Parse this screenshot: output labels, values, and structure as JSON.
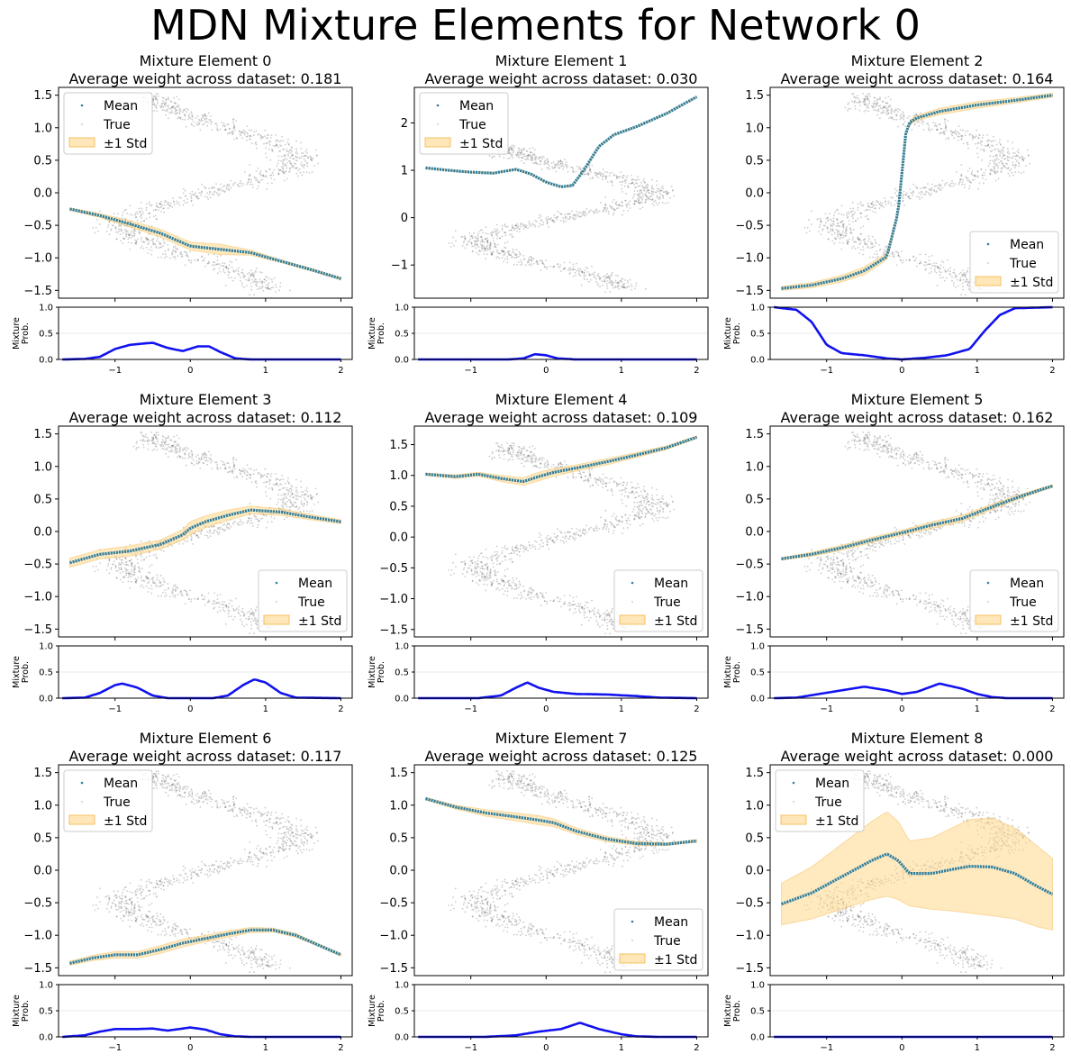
{
  "figure": {
    "suptitle": "MDN Mixture Elements for Network 0",
    "colors": {
      "mean": "#2f7fa0",
      "true": "#555555",
      "std_fill": "#ffd78a",
      "prob_line": "#1212f0",
      "grid": "#e0e0e0"
    }
  },
  "chart_data": [
    {
      "type": "scatter",
      "title": "Mixture Element 0",
      "subtitle": "Average weight across dataset: 0.181",
      "legend": [
        "Mean",
        "True",
        "±1 Std"
      ],
      "legend_position": "upper-left",
      "ylim": [
        -1.62,
        1.62
      ],
      "yticks": [
        -1.5,
        -1.0,
        -0.5,
        0.0,
        0.5,
        1.0,
        1.5
      ],
      "ytick_labels": [
        "−1.5",
        "−1.0",
        "−0.5",
        "0.0",
        "0.5",
        "1.0",
        "1.5"
      ],
      "mean_curve": {
        "x": [
          -1.6,
          -1.2,
          -0.8,
          -0.4,
          0.0,
          0.4,
          0.8,
          1.2,
          1.6,
          2.0
        ],
        "y": [
          -0.25,
          -0.35,
          -0.48,
          -0.62,
          -0.82,
          -0.87,
          -0.92,
          -1.05,
          -1.18,
          -1.32
        ]
      },
      "std": [
        0.02,
        0.03,
        0.05,
        0.06,
        0.06,
        0.08,
        0.04,
        0.02,
        0.02,
        0.02
      ],
      "prob_label": "Mixture\nProb.",
      "prob_curve": {
        "x": [
          -1.7,
          -1.4,
          -1.2,
          -1.0,
          -0.8,
          -0.5,
          -0.3,
          -0.1,
          0.1,
          0.25,
          0.4,
          0.6,
          0.8,
          1.2,
          2.0
        ],
        "y": [
          0.0,
          0.01,
          0.05,
          0.2,
          0.28,
          0.32,
          0.22,
          0.16,
          0.25,
          0.25,
          0.14,
          0.02,
          0.0,
          0.0,
          0.0
        ]
      },
      "prob_ylim": [
        0,
        1
      ],
      "prob_yticks": [
        "0.0",
        "0.5",
        "1.0"
      ],
      "prob_xticks": [
        "−1",
        "0",
        "1",
        "2"
      ]
    },
    {
      "type": "scatter",
      "title": "Mixture Element 1",
      "subtitle": "Average weight across dataset: 0.030",
      "legend": [
        "Mean",
        "True",
        "±1 Std"
      ],
      "legend_position": "upper-left",
      "ylim": [
        -1.7,
        2.75
      ],
      "yticks": [
        -1,
        0,
        1,
        2
      ],
      "ytick_labels": [
        "−1",
        "0",
        "1",
        "2"
      ],
      "mean_curve": {
        "x": [
          -1.6,
          -1.3,
          -1.0,
          -0.7,
          -0.4,
          -0.2,
          0.0,
          0.2,
          0.35,
          0.5,
          0.7,
          0.9,
          1.2,
          1.6,
          2.0
        ],
        "y": [
          1.05,
          1.0,
          0.96,
          0.94,
          1.02,
          0.92,
          0.75,
          0.65,
          0.68,
          1.0,
          1.5,
          1.75,
          1.92,
          2.2,
          2.55
        ]
      },
      "std": [
        0.01,
        0.01,
        0.01,
        0.01,
        0.01,
        0.01,
        0.01,
        0.01,
        0.01,
        0.01,
        0.01,
        0.01,
        0.01,
        0.01,
        0.01
      ],
      "prob_label": "Mixture\nProb.",
      "prob_curve": {
        "x": [
          -1.7,
          -0.5,
          -0.3,
          -0.15,
          0.0,
          0.15,
          0.4,
          2.0
        ],
        "y": [
          0.0,
          0.0,
          0.02,
          0.1,
          0.08,
          0.02,
          0.0,
          0.0
        ]
      },
      "prob_ylim": [
        0,
        1
      ],
      "prob_yticks": [
        "0.0",
        "0.5",
        "1.0"
      ],
      "prob_xticks": [
        "−1",
        "0",
        "1",
        "2"
      ]
    },
    {
      "type": "scatter",
      "title": "Mixture Element 2",
      "subtitle": "Average weight across dataset: 0.164",
      "legend": [
        "Mean",
        "True",
        "±1 Std"
      ],
      "legend_position": "lower-right",
      "ylim": [
        -1.62,
        1.62
      ],
      "yticks": [
        -1.5,
        -1.0,
        -0.5,
        0.0,
        0.5,
        1.0,
        1.5
      ],
      "ytick_labels": [
        "−1.5",
        "−1.0",
        "−0.5",
        "0.0",
        "0.5",
        "1.0",
        "1.5"
      ],
      "mean_curve": {
        "x": [
          -1.6,
          -1.2,
          -0.8,
          -0.5,
          -0.2,
          -0.05,
          0.0,
          0.05,
          0.1,
          0.2,
          0.5,
          1.0,
          1.5,
          2.0
        ],
        "y": [
          -1.47,
          -1.42,
          -1.32,
          -1.2,
          -0.98,
          -0.3,
          0.3,
          0.9,
          1.08,
          1.15,
          1.25,
          1.35,
          1.42,
          1.5
        ]
      },
      "std": [
        0.03,
        0.04,
        0.05,
        0.06,
        0.05,
        0.03,
        0.03,
        0.03,
        0.03,
        0.04,
        0.05,
        0.05,
        0.04,
        0.03
      ],
      "prob_label": "Mixture\nProb.",
      "prob_curve": {
        "x": [
          -1.7,
          -1.4,
          -1.2,
          -1.0,
          -0.8,
          -0.5,
          -0.2,
          0.0,
          0.3,
          0.6,
          0.9,
          1.1,
          1.3,
          1.5,
          2.0
        ],
        "y": [
          1.0,
          0.95,
          0.72,
          0.28,
          0.12,
          0.08,
          0.02,
          0.0,
          0.03,
          0.08,
          0.2,
          0.55,
          0.85,
          0.98,
          1.0
        ]
      },
      "prob_ylim": [
        0,
        1
      ],
      "prob_yticks": [
        "0.0",
        "0.5",
        "1.0"
      ],
      "prob_xticks": [
        "−1",
        "0",
        "1",
        "2"
      ]
    },
    {
      "type": "scatter",
      "title": "Mixture Element 3",
      "subtitle": "Average weight across dataset: 0.112",
      "legend": [
        "Mean",
        "True",
        "±1 Std"
      ],
      "legend_position": "lower-right",
      "ylim": [
        -1.62,
        1.62
      ],
      "yticks": [
        -1.5,
        -1.0,
        -0.5,
        0.0,
        0.5,
        1.0,
        1.5
      ],
      "ytick_labels": [
        "−1.5",
        "−1.0",
        "−0.5",
        "0.0",
        "0.5",
        "1.0",
        "1.5"
      ],
      "mean_curve": {
        "x": [
          -1.6,
          -1.2,
          -0.8,
          -0.4,
          -0.1,
          0.0,
          0.2,
          0.5,
          0.8,
          1.2,
          1.6,
          2.0
        ],
        "y": [
          -0.48,
          -0.35,
          -0.3,
          -0.2,
          -0.05,
          0.05,
          0.15,
          0.25,
          0.33,
          0.3,
          0.22,
          0.15
        ]
      },
      "std": [
        0.07,
        0.07,
        0.08,
        0.07,
        0.08,
        0.1,
        0.09,
        0.08,
        0.06,
        0.05,
        0.04,
        0.03
      ],
      "prob_label": "Mixture\nProb.",
      "prob_curve": {
        "x": [
          -1.7,
          -1.4,
          -1.2,
          -1.0,
          -0.9,
          -0.7,
          -0.5,
          -0.3,
          0.0,
          0.3,
          0.5,
          0.7,
          0.85,
          1.0,
          1.2,
          1.4,
          2.0
        ],
        "y": [
          0.0,
          0.01,
          0.1,
          0.25,
          0.28,
          0.2,
          0.05,
          0.0,
          0.0,
          0.0,
          0.05,
          0.25,
          0.36,
          0.3,
          0.1,
          0.01,
          0.0
        ]
      },
      "prob_ylim": [
        0,
        1
      ],
      "prob_yticks": [
        "0.0",
        "0.5",
        "1.0"
      ],
      "prob_xticks": [
        "−1",
        "0",
        "1",
        "2"
      ]
    },
    {
      "type": "scatter",
      "title": "Mixture Element 4",
      "subtitle": "Average weight across dataset: 0.109",
      "legend": [
        "Mean",
        "True",
        "±1 Std"
      ],
      "legend_position": "lower-right",
      "ylim": [
        -1.62,
        1.8
      ],
      "yticks": [
        -1.5,
        -1.0,
        -0.5,
        0.0,
        0.5,
        1.0,
        1.5
      ],
      "ytick_labels": [
        "−1.5",
        "−1.0",
        "−0.5",
        "0.0",
        "0.5",
        "1.0",
        "1.5"
      ],
      "mean_curve": {
        "x": [
          -1.6,
          -1.2,
          -0.9,
          -0.6,
          -0.3,
          -0.1,
          0.1,
          0.4,
          0.8,
          1.2,
          1.6,
          2.0
        ],
        "y": [
          1.02,
          0.98,
          1.02,
          0.95,
          0.9,
          0.98,
          1.05,
          1.12,
          1.22,
          1.33,
          1.45,
          1.62
        ]
      },
      "std": [
        0.02,
        0.03,
        0.03,
        0.05,
        0.06,
        0.07,
        0.06,
        0.05,
        0.05,
        0.04,
        0.03,
        0.02
      ],
      "prob_label": "Mixture\nProb.",
      "prob_curve": {
        "x": [
          -1.7,
          -0.9,
          -0.6,
          -0.4,
          -0.25,
          -0.1,
          0.1,
          0.4,
          0.8,
          1.2,
          1.5,
          2.0
        ],
        "y": [
          0.0,
          0.0,
          0.05,
          0.2,
          0.3,
          0.2,
          0.12,
          0.08,
          0.07,
          0.04,
          0.01,
          0.0
        ]
      },
      "prob_ylim": [
        0,
        1
      ],
      "prob_yticks": [
        "0.0",
        "0.5",
        "1.0"
      ],
      "prob_xticks": [
        "−1",
        "0",
        "1",
        "2"
      ]
    },
    {
      "type": "scatter",
      "title": "Mixture Element 5",
      "subtitle": "Average weight across dataset: 0.162",
      "legend": [
        "Mean",
        "True",
        "±1 Std"
      ],
      "legend_position": "lower-right",
      "ylim": [
        -1.62,
        1.62
      ],
      "yticks": [
        -1.5,
        -1.0,
        -0.5,
        0.0,
        0.5,
        1.0,
        1.5
      ],
      "ytick_labels": [
        "−1.5",
        "−1.0",
        "−0.5",
        "0.0",
        "0.5",
        "1.0",
        "1.5"
      ],
      "mean_curve": {
        "x": [
          -1.6,
          -1.2,
          -0.8,
          -0.4,
          0.0,
          0.4,
          0.8,
          1.2,
          1.6,
          2.0
        ],
        "y": [
          -0.42,
          -0.35,
          -0.25,
          -0.13,
          -0.02,
          0.1,
          0.2,
          0.38,
          0.55,
          0.7
        ]
      },
      "std": [
        0.02,
        0.03,
        0.04,
        0.04,
        0.04,
        0.05,
        0.05,
        0.04,
        0.03,
        0.02
      ],
      "prob_label": "Mixture\nProb.",
      "prob_curve": {
        "x": [
          -1.7,
          -1.4,
          -1.1,
          -0.8,
          -0.5,
          -0.2,
          0.0,
          0.2,
          0.5,
          0.8,
          1.0,
          1.2,
          1.4,
          2.0
        ],
        "y": [
          0.0,
          0.01,
          0.08,
          0.15,
          0.22,
          0.15,
          0.08,
          0.12,
          0.28,
          0.18,
          0.08,
          0.02,
          0.0,
          0.0
        ]
      },
      "prob_ylim": [
        0,
        1
      ],
      "prob_yticks": [
        "0.0",
        "0.5",
        "1.0"
      ],
      "prob_xticks": [
        "−1",
        "0",
        "1",
        "2"
      ]
    },
    {
      "type": "scatter",
      "title": "Mixture Element 6",
      "subtitle": "Average weight across dataset: 0.117",
      "legend": [
        "Mean",
        "True",
        "±1 Std"
      ],
      "legend_position": "upper-left",
      "ylim": [
        -1.62,
        1.62
      ],
      "yticks": [
        -1.5,
        -1.0,
        -0.5,
        0.0,
        0.5,
        1.0,
        1.5
      ],
      "ytick_labels": [
        "−1.5",
        "−1.0",
        "−0.5",
        "0.0",
        "0.5",
        "1.0",
        "1.5"
      ],
      "mean_curve": {
        "x": [
          -1.6,
          -1.3,
          -1.0,
          -0.7,
          -0.4,
          -0.1,
          0.2,
          0.5,
          0.8,
          1.1,
          1.4,
          1.7,
          2.0
        ],
        "y": [
          -1.43,
          -1.35,
          -1.3,
          -1.3,
          -1.22,
          -1.12,
          -1.05,
          -0.98,
          -0.92,
          -0.92,
          -1.0,
          -1.15,
          -1.3
        ]
      },
      "std": [
        0.03,
        0.04,
        0.05,
        0.05,
        0.06,
        0.06,
        0.05,
        0.05,
        0.04,
        0.03,
        0.03,
        0.02,
        0.02
      ],
      "prob_label": "Mixture\nProb.",
      "prob_curve": {
        "x": [
          -1.7,
          -1.4,
          -1.2,
          -1.0,
          -0.7,
          -0.5,
          -0.3,
          0.0,
          0.2,
          0.4,
          0.6,
          0.8,
          2.0
        ],
        "y": [
          0.0,
          0.03,
          0.1,
          0.15,
          0.15,
          0.16,
          0.12,
          0.18,
          0.14,
          0.05,
          0.01,
          0.0,
          0.0
        ]
      },
      "prob_ylim": [
        0,
        1
      ],
      "prob_yticks": [
        "0.0",
        "0.5",
        "1.0"
      ],
      "prob_xticks": [
        "−1",
        "0",
        "1",
        "2"
      ]
    },
    {
      "type": "scatter",
      "title": "Mixture Element 7",
      "subtitle": "Average weight across dataset: 0.125",
      "legend": [
        "Mean",
        "True",
        "±1 Std"
      ],
      "legend_position": "lower-right",
      "ylim": [
        -1.62,
        1.62
      ],
      "yticks": [
        -1.5,
        -1.0,
        -0.5,
        0.0,
        0.5,
        1.0,
        1.5
      ],
      "ytick_labels": [
        "−1.5",
        "−1.0",
        "−0.5",
        "0.0",
        "0.5",
        "1.0",
        "1.5"
      ],
      "mean_curve": {
        "x": [
          -1.6,
          -1.2,
          -0.8,
          -0.4,
          -0.1,
          0.1,
          0.4,
          0.8,
          1.2,
          1.6,
          2.0
        ],
        "y": [
          1.1,
          0.97,
          0.88,
          0.82,
          0.77,
          0.73,
          0.6,
          0.48,
          0.41,
          0.4,
          0.45
        ]
      },
      "std": [
        0.02,
        0.03,
        0.05,
        0.06,
        0.07,
        0.06,
        0.05,
        0.04,
        0.03,
        0.02,
        0.02
      ],
      "prob_label": "Mixture\nProb.",
      "prob_curve": {
        "x": [
          -1.7,
          -0.8,
          -0.4,
          -0.1,
          0.2,
          0.45,
          0.7,
          1.0,
          1.2,
          1.5,
          2.0
        ],
        "y": [
          0.0,
          0.0,
          0.03,
          0.1,
          0.15,
          0.27,
          0.15,
          0.05,
          0.01,
          0.0,
          0.0
        ]
      },
      "prob_ylim": [
        0,
        1
      ],
      "prob_yticks": [
        "0.0",
        "0.5",
        "1.0"
      ],
      "prob_xticks": [
        "−1",
        "0",
        "1",
        "2"
      ]
    },
    {
      "type": "scatter",
      "title": "Mixture Element 8",
      "subtitle": "Average weight across dataset: 0.000",
      "legend": [
        "Mean",
        "True",
        "±1 Std"
      ],
      "legend_position": "upper-left",
      "ylim": [
        -1.62,
        1.62
      ],
      "yticks": [
        -1.5,
        -1.0,
        -0.5,
        0.0,
        0.5,
        1.0,
        1.5
      ],
      "ytick_labels": [
        "−1.5",
        "−1.0",
        "−0.5",
        "0.0",
        "0.5",
        "1.0",
        "1.5"
      ],
      "mean_curve": {
        "x": [
          -1.6,
          -1.2,
          -0.8,
          -0.4,
          -0.2,
          -0.05,
          0.1,
          0.4,
          0.7,
          0.9,
          1.2,
          1.5,
          1.8,
          2.0
        ],
        "y": [
          -0.52,
          -0.35,
          -0.1,
          0.15,
          0.25,
          0.15,
          -0.05,
          -0.05,
          0.02,
          0.06,
          0.05,
          -0.05,
          -0.25,
          -0.37
        ]
      },
      "std": [
        0.32,
        0.4,
        0.5,
        0.6,
        0.65,
        0.6,
        0.5,
        0.55,
        0.65,
        0.72,
        0.75,
        0.7,
        0.62,
        0.55
      ],
      "prob_label": "Mixture\nProb.",
      "prob_curve": {
        "x": [
          -1.7,
          2.0
        ],
        "y": [
          0.0,
          0.0
        ]
      },
      "prob_ylim": [
        0,
        1
      ],
      "prob_yticks": [
        "0.0",
        "0.5",
        "1.0"
      ],
      "prob_xticks": [
        "−1",
        "0",
        "1",
        "2"
      ]
    }
  ]
}
